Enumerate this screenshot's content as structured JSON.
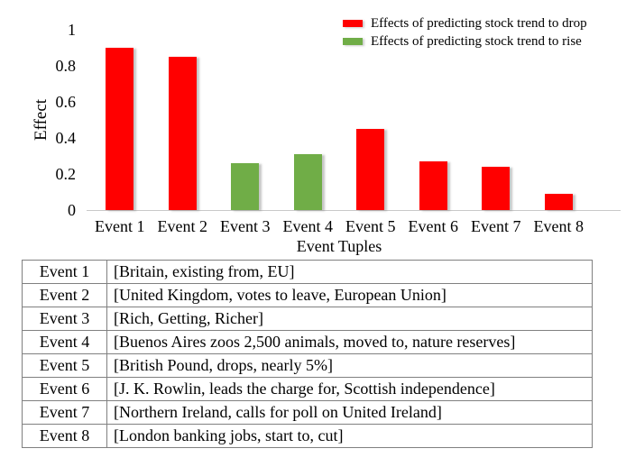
{
  "colors": {
    "drop": "#ff0000",
    "rise": "#70ad47",
    "axis_line": "#c9c9c9",
    "table_border": "#808080",
    "text": "#000000"
  },
  "chart_data": {
    "type": "bar",
    "title": "",
    "xlabel": "Event Tuples",
    "ylabel": "Effect",
    "ylim": [
      0,
      1
    ],
    "grid": false,
    "legend_position": "top-right",
    "yticks": [
      {
        "value": 0,
        "label": "0"
      },
      {
        "value": 0.2,
        "label": "0.2"
      },
      {
        "value": 0.4,
        "label": "0.4"
      },
      {
        "value": 0.6,
        "label": "0.6"
      },
      {
        "value": 0.8,
        "label": "0.8"
      },
      {
        "value": 1,
        "label": "1"
      }
    ],
    "categories": [
      "Event 1",
      "Event 2",
      "Event 3",
      "Event 4",
      "Event 5",
      "Event 6",
      "Event 7",
      "Event 8"
    ],
    "values": [
      0.9,
      0.85,
      0.26,
      0.31,
      0.45,
      0.27,
      0.24,
      0.09
    ],
    "bar_series": [
      "drop",
      "drop",
      "rise",
      "rise",
      "drop",
      "drop",
      "drop",
      "drop"
    ],
    "legend": [
      {
        "key": "drop",
        "label": "Effects of predicting stock trend to drop",
        "color": "#ff0000"
      },
      {
        "key": "rise",
        "label": "Effects of predicting stock trend to rise",
        "color": "#70ad47"
      }
    ]
  },
  "event_table": {
    "columns": [
      "event",
      "tuple"
    ],
    "rows": [
      {
        "event": "Event 1",
        "tuple": "[Britain, existing from, EU]"
      },
      {
        "event": "Event 2",
        "tuple": "[United Kingdom, votes to leave, European Union]"
      },
      {
        "event": "Event 3",
        "tuple": "[Rich, Getting, Richer]"
      },
      {
        "event": "Event 4",
        "tuple": "[Buenos Aires zoos 2,500 animals, moved to, nature reserves]"
      },
      {
        "event": "Event 5",
        "tuple": "[British Pound, drops, nearly 5%]"
      },
      {
        "event": "Event 6",
        "tuple": "[J. K. Rowlin, leads the charge for, Scottish independence]"
      },
      {
        "event": "Event 7",
        "tuple": "[Northern Ireland, calls for poll on United Ireland]"
      },
      {
        "event": "Event 8",
        "tuple": "[London banking jobs, start to, cut]"
      }
    ]
  }
}
